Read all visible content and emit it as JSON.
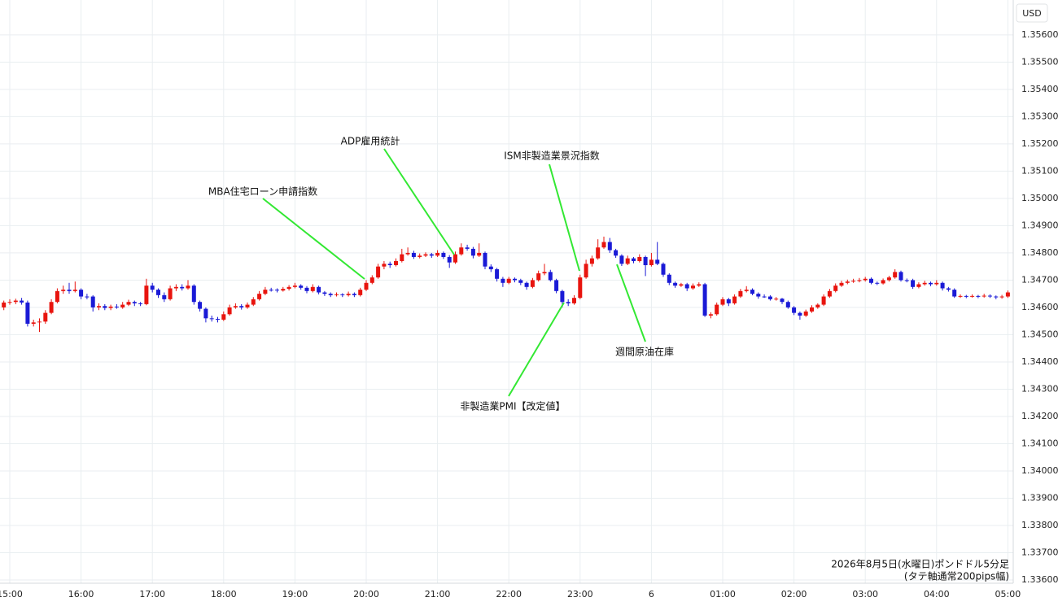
{
  "chart_data": {
    "type": "candlestick",
    "y_axis_label": "USD",
    "caption": [
      "2026年8月5日(水曜日)ポンドドル5分足",
      "(タテ軸通常200pips幅)"
    ],
    "annotations": [
      {
        "text": "MBA住宅ローン申請指数"
      },
      {
        "text": "ADP雇用統計"
      },
      {
        "text": "ISM非製造業景況指数"
      },
      {
        "text": "非製造業PMI【改定値】"
      },
      {
        "text": "週間原油在庫"
      }
    ],
    "up_color": "#e8140e",
    "down_color": "#1a1ad6",
    "annotation_color": "#33e833",
    "grid": true,
    "ylim": [
      1.33588,
      1.35728
    ],
    "yticks": [
      {
        "value": 1.356,
        "label": "1.35600"
      },
      {
        "value": 1.355,
        "label": "1.35500"
      },
      {
        "value": 1.354,
        "label": "1.35400"
      },
      {
        "value": 1.353,
        "label": "1.35300"
      },
      {
        "value": 1.352,
        "label": "1.35200"
      },
      {
        "value": 1.351,
        "label": "1.35100"
      },
      {
        "value": 1.35,
        "label": "1.35000"
      },
      {
        "value": 1.349,
        "label": "1.34900"
      },
      {
        "value": 1.348,
        "label": "1.34800"
      },
      {
        "value": 1.347,
        "label": "1.34700"
      },
      {
        "value": 1.346,
        "label": "1.34600"
      },
      {
        "value": 1.345,
        "label": "1.34500"
      },
      {
        "value": 1.344,
        "label": "1.34400"
      },
      {
        "value": 1.343,
        "label": "1.34300"
      },
      {
        "value": 1.342,
        "label": "1.34200"
      },
      {
        "value": 1.341,
        "label": "1.34100"
      },
      {
        "value": 1.34,
        "label": "1.34000"
      },
      {
        "value": 1.339,
        "label": "1.33900"
      },
      {
        "value": 1.338,
        "label": "1.33800"
      },
      {
        "value": 1.337,
        "label": "1.33700"
      },
      {
        "value": 1.336,
        "label": "1.33600"
      }
    ],
    "categories": [
      null,
      "15:00",
      null,
      null,
      null,
      null,
      null,
      null,
      null,
      null,
      null,
      null,
      null,
      "16:00",
      null,
      null,
      null,
      null,
      null,
      null,
      null,
      null,
      null,
      null,
      null,
      "17:00",
      null,
      null,
      null,
      null,
      null,
      null,
      null,
      null,
      null,
      null,
      null,
      "18:00",
      null,
      null,
      null,
      null,
      null,
      null,
      null,
      null,
      null,
      null,
      null,
      "19:00",
      null,
      null,
      null,
      null,
      null,
      null,
      null,
      null,
      null,
      null,
      null,
      "20:00",
      null,
      null,
      null,
      null,
      null,
      null,
      null,
      null,
      null,
      null,
      null,
      "21:00",
      null,
      null,
      null,
      null,
      null,
      null,
      null,
      null,
      null,
      null,
      null,
      "22:00",
      null,
      null,
      null,
      null,
      null,
      null,
      null,
      null,
      null,
      null,
      null,
      "23:00",
      null,
      null,
      null,
      null,
      null,
      null,
      null,
      null,
      null,
      null,
      null,
      "6",
      null,
      null,
      null,
      null,
      null,
      null,
      null,
      null,
      null,
      null,
      null,
      "01:00",
      null,
      null,
      null,
      null,
      null,
      null,
      null,
      null,
      null,
      null,
      null,
      "02:00",
      null,
      null,
      null,
      null,
      null,
      null,
      null,
      null,
      null,
      null,
      null,
      "03:00",
      null,
      null,
      null,
      null,
      null,
      null,
      null,
      null,
      null,
      null,
      null,
      "04:00",
      null,
      null,
      null,
      null,
      null,
      null,
      null,
      null,
      null,
      null,
      null,
      "05:00"
    ],
    "candles": [
      [
        1.346,
        1.34625,
        1.3459,
        1.34618
      ],
      [
        1.34618,
        1.3463,
        1.3461,
        1.3462
      ],
      [
        1.3462,
        1.34632,
        1.34612,
        1.34625
      ],
      [
        1.34625,
        1.34635,
        1.3461,
        1.34618
      ],
      [
        1.34618,
        1.34625,
        1.3453,
        1.3454
      ],
      [
        1.3454,
        1.34555,
        1.3453,
        1.34545
      ],
      [
        1.34545,
        1.3456,
        1.3451,
        1.34548
      ],
      [
        1.34548,
        1.3459,
        1.3454,
        1.3458
      ],
      [
        1.3458,
        1.3463,
        1.34575,
        1.3462
      ],
      [
        1.3462,
        1.3467,
        1.34615,
        1.3466
      ],
      [
        1.3466,
        1.3468,
        1.3465,
        1.34665
      ],
      [
        1.34665,
        1.3469,
        1.3465,
        1.3466
      ],
      [
        1.3466,
        1.34695,
        1.34655,
        1.34665
      ],
      [
        1.34665,
        1.3467,
        1.3463,
        1.3464
      ],
      [
        1.3464,
        1.3465,
        1.3463,
        1.3464
      ],
      [
        1.3464,
        1.34645,
        1.34585,
        1.346
      ],
      [
        1.346,
        1.34615,
        1.3459,
        1.34605
      ],
      [
        1.34605,
        1.34612,
        1.3459,
        1.34598
      ],
      [
        1.34598,
        1.3461,
        1.3459,
        1.34603
      ],
      [
        1.34603,
        1.34612,
        1.34595,
        1.346
      ],
      [
        1.346,
        1.3462,
        1.34595,
        1.3461
      ],
      [
        1.3461,
        1.34628,
        1.34605,
        1.3462
      ],
      [
        1.3462,
        1.34625,
        1.34605,
        1.34615
      ],
      [
        1.34615,
        1.3462,
        1.34605,
        1.34612
      ],
      [
        1.34612,
        1.34705,
        1.34608,
        1.3468
      ],
      [
        1.3468,
        1.3469,
        1.34655,
        1.34665
      ],
      [
        1.34665,
        1.3467,
        1.34635,
        1.34645
      ],
      [
        1.34645,
        1.34655,
        1.3462,
        1.3463
      ],
      [
        1.3463,
        1.3468,
        1.34625,
        1.3467
      ],
      [
        1.3467,
        1.34685,
        1.3466,
        1.34675
      ],
      [
        1.34675,
        1.34685,
        1.34662,
        1.3467
      ],
      [
        1.3467,
        1.347,
        1.34665,
        1.3468
      ],
      [
        1.3468,
        1.34685,
        1.3461,
        1.3462
      ],
      [
        1.3462,
        1.34625,
        1.34585,
        1.34595
      ],
      [
        1.34595,
        1.346,
        1.34545,
        1.3456
      ],
      [
        1.3456,
        1.3457,
        1.34548,
        1.34558
      ],
      [
        1.34558,
        1.34565,
        1.34545,
        1.34555
      ],
      [
        1.34555,
        1.34585,
        1.3455,
        1.34575
      ],
      [
        1.34575,
        1.3461,
        1.3457,
        1.346
      ],
      [
        1.346,
        1.34615,
        1.34595,
        1.34605
      ],
      [
        1.34605,
        1.34612,
        1.34592,
        1.346
      ],
      [
        1.346,
        1.34618,
        1.34595,
        1.3461
      ],
      [
        1.3461,
        1.34638,
        1.34605,
        1.3463
      ],
      [
        1.3463,
        1.3466,
        1.34625,
        1.3465
      ],
      [
        1.3465,
        1.34675,
        1.34645,
        1.34665
      ],
      [
        1.34665,
        1.34672,
        1.34658,
        1.34665
      ],
      [
        1.34665,
        1.3467,
        1.34655,
        1.34662
      ],
      [
        1.34662,
        1.34675,
        1.34658,
        1.34668
      ],
      [
        1.34668,
        1.34682,
        1.34662,
        1.34675
      ],
      [
        1.34675,
        1.3469,
        1.3467,
        1.3468
      ],
      [
        1.3468,
        1.34685,
        1.34665,
        1.34672
      ],
      [
        1.34672,
        1.34678,
        1.34652,
        1.3466
      ],
      [
        1.3466,
        1.34685,
        1.34655,
        1.34675
      ],
      [
        1.34675,
        1.3468,
        1.34648,
        1.34655
      ],
      [
        1.34655,
        1.3466,
        1.34642,
        1.3465
      ],
      [
        1.3465,
        1.34655,
        1.34638,
        1.34645
      ],
      [
        1.34645,
        1.34655,
        1.3464,
        1.34648
      ],
      [
        1.34648,
        1.34652,
        1.34638,
        1.34645
      ],
      [
        1.34645,
        1.34658,
        1.3464,
        1.3465
      ],
      [
        1.3465,
        1.34655,
        1.34638,
        1.34645
      ],
      [
        1.34645,
        1.34672,
        1.3464,
        1.34665
      ],
      [
        1.34665,
        1.347,
        1.3466,
        1.3469
      ],
      [
        1.3469,
        1.34718,
        1.34685,
        1.3471
      ],
      [
        1.3471,
        1.3476,
        1.34705,
        1.3475
      ],
      [
        1.3475,
        1.3477,
        1.3474,
        1.3476
      ],
      [
        1.3476,
        1.34768,
        1.34745,
        1.34755
      ],
      [
        1.34755,
        1.3478,
        1.3475,
        1.3477
      ],
      [
        1.3477,
        1.34815,
        1.34765,
        1.34795
      ],
      [
        1.34795,
        1.3482,
        1.3479,
        1.348
      ],
      [
        1.348,
        1.34808,
        1.34778,
        1.34785
      ],
      [
        1.34785,
        1.34798,
        1.3478,
        1.3479
      ],
      [
        1.3479,
        1.34802,
        1.34785,
        1.34795
      ],
      [
        1.34795,
        1.348,
        1.34782,
        1.3479
      ],
      [
        1.3479,
        1.3481,
        1.34785,
        1.348
      ],
      [
        1.348,
        1.34805,
        1.34778,
        1.34785
      ],
      [
        1.34785,
        1.34792,
        1.34745,
        1.34765
      ],
      [
        1.34765,
        1.34805,
        1.3476,
        1.34795
      ],
      [
        1.34795,
        1.34835,
        1.3479,
        1.3482
      ],
      [
        1.3482,
        1.3483,
        1.34808,
        1.34815
      ],
      [
        1.34815,
        1.34822,
        1.3478,
        1.3479
      ],
      [
        1.3479,
        1.34835,
        1.34785,
        1.348
      ],
      [
        1.348,
        1.34805,
        1.3474,
        1.3475
      ],
      [
        1.3475,
        1.34758,
        1.3473,
        1.3474
      ],
      [
        1.3474,
        1.34745,
        1.34695,
        1.34705
      ],
      [
        1.34705,
        1.34712,
        1.34675,
        1.3469
      ],
      [
        1.3469,
        1.34712,
        1.34685,
        1.34705
      ],
      [
        1.34705,
        1.3471,
        1.34692,
        1.347
      ],
      [
        1.347,
        1.34705,
        1.34682,
        1.3469
      ],
      [
        1.3469,
        1.34695,
        1.34665,
        1.34675
      ],
      [
        1.34675,
        1.34708,
        1.3467,
        1.347
      ],
      [
        1.347,
        1.34735,
        1.34695,
        1.34725
      ],
      [
        1.34725,
        1.3476,
        1.34718,
        1.3473
      ],
      [
        1.3473,
        1.34738,
        1.34695,
        1.347
      ],
      [
        1.347,
        1.34705,
        1.34652,
        1.3466
      ],
      [
        1.3466,
        1.34665,
        1.346,
        1.3462
      ],
      [
        1.3462,
        1.3463,
        1.34605,
        1.34615
      ],
      [
        1.34615,
        1.34645,
        1.3461,
        1.34635
      ],
      [
        1.34635,
        1.3472,
        1.3463,
        1.3471
      ],
      [
        1.3471,
        1.34775,
        1.34705,
        1.3476
      ],
      [
        1.3476,
        1.3479,
        1.3475,
        1.3478
      ],
      [
        1.3478,
        1.3485,
        1.34775,
        1.3482
      ],
      [
        1.3482,
        1.3486,
        1.34815,
        1.3484
      ],
      [
        1.3484,
        1.34855,
        1.348,
        1.3481
      ],
      [
        1.3481,
        1.34815,
        1.34782,
        1.3479
      ],
      [
        1.3479,
        1.34795,
        1.34752,
        1.3476
      ],
      [
        1.3476,
        1.3479,
        1.34755,
        1.3478
      ],
      [
        1.3478,
        1.34785,
        1.34762,
        1.3477
      ],
      [
        1.3477,
        1.34795,
        1.34765,
        1.34785
      ],
      [
        1.34785,
        1.3479,
        1.34715,
        1.34755
      ],
      [
        1.34755,
        1.348,
        1.3475,
        1.34775
      ],
      [
        1.34775,
        1.3484,
        1.34755,
        1.3476
      ],
      [
        1.3476,
        1.34765,
        1.34712,
        1.3472
      ],
      [
        1.3472,
        1.34725,
        1.34682,
        1.3469
      ],
      [
        1.3469,
        1.34695,
        1.34672,
        1.3468
      ],
      [
        1.3468,
        1.3469,
        1.34675,
        1.34685
      ],
      [
        1.34685,
        1.3469,
        1.3466,
        1.3467
      ],
      [
        1.3467,
        1.34688,
        1.34665,
        1.3468
      ],
      [
        1.3468,
        1.34692,
        1.34675,
        1.34685
      ],
      [
        1.34685,
        1.3469,
        1.34565,
        1.3457
      ],
      [
        1.3457,
        1.34582,
        1.3456,
        1.34575
      ],
      [
        1.34575,
        1.34618,
        1.3457,
        1.3461
      ],
      [
        1.3461,
        1.34638,
        1.34605,
        1.3463
      ],
      [
        1.3463,
        1.34635,
        1.34605,
        1.34615
      ],
      [
        1.34615,
        1.34648,
        1.3461,
        1.3464
      ],
      [
        1.3464,
        1.34668,
        1.34635,
        1.3466
      ],
      [
        1.3466,
        1.34678,
        1.34655,
        1.34665
      ],
      [
        1.34665,
        1.3467,
        1.34645,
        1.3465
      ],
      [
        1.3465,
        1.34655,
        1.34632,
        1.3464
      ],
      [
        1.3464,
        1.34648,
        1.34635,
        1.3464
      ],
      [
        1.3464,
        1.34645,
        1.34625,
        1.3463
      ],
      [
        1.3463,
        1.34638,
        1.34625,
        1.34632
      ],
      [
        1.34632,
        1.34635,
        1.34612,
        1.3462
      ],
      [
        1.3462,
        1.34625,
        1.34595,
        1.346
      ],
      [
        1.346,
        1.34605,
        1.34572,
        1.3458
      ],
      [
        1.3458,
        1.34585,
        1.34555,
        1.3457
      ],
      [
        1.3457,
        1.34592,
        1.34565,
        1.34585
      ],
      [
        1.34585,
        1.34608,
        1.3458,
        1.346
      ],
      [
        1.346,
        1.34615,
        1.34595,
        1.3461
      ],
      [
        1.3461,
        1.34648,
        1.34605,
        1.3464
      ],
      [
        1.3464,
        1.34668,
        1.34635,
        1.3466
      ],
      [
        1.3466,
        1.34688,
        1.34655,
        1.3468
      ],
      [
        1.3468,
        1.34698,
        1.34675,
        1.3469
      ],
      [
        1.3469,
        1.34702,
        1.34685,
        1.34695
      ],
      [
        1.34695,
        1.34705,
        1.3469,
        1.34698
      ],
      [
        1.34698,
        1.34708,
        1.34692,
        1.347
      ],
      [
        1.347,
        1.34712,
        1.34695,
        1.34705
      ],
      [
        1.34705,
        1.3471,
        1.34685,
        1.3469
      ],
      [
        1.3469,
        1.34695,
        1.34682,
        1.34688
      ],
      [
        1.34688,
        1.34706,
        1.34684,
        1.347
      ],
      [
        1.347,
        1.34716,
        1.34695,
        1.3471
      ],
      [
        1.3471,
        1.3474,
        1.34705,
        1.3473
      ],
      [
        1.3473,
        1.34735,
        1.34695,
        1.347
      ],
      [
        1.347,
        1.34706,
        1.34692,
        1.347
      ],
      [
        1.347,
        1.34705,
        1.34668,
        1.34675
      ],
      [
        1.34675,
        1.34692,
        1.3467,
        1.34685
      ],
      [
        1.34685,
        1.34698,
        1.3468,
        1.3469
      ],
      [
        1.3469,
        1.34695,
        1.34678,
        1.34685
      ],
      [
        1.34685,
        1.347,
        1.3468,
        1.3469
      ],
      [
        1.3469,
        1.34695,
        1.34662,
        1.3467
      ],
      [
        1.3467,
        1.34675,
        1.34658,
        1.34665
      ],
      [
        1.34665,
        1.3467,
        1.34635,
        1.3464
      ],
      [
        1.3464,
        1.34648,
        1.34635,
        1.34642
      ],
      [
        1.34642,
        1.34646,
        1.34634,
        1.3464
      ],
      [
        1.3464,
        1.34648,
        1.34636,
        1.34642
      ],
      [
        1.34642,
        1.34646,
        1.34634,
        1.3464
      ],
      [
        1.3464,
        1.3465,
        1.34636,
        1.34643
      ],
      [
        1.34643,
        1.34648,
        1.34635,
        1.3464
      ],
      [
        1.3464,
        1.34644,
        1.3463,
        1.34637
      ],
      [
        1.34637,
        1.34646,
        1.34632,
        1.3464
      ],
      [
        1.3464,
        1.34662,
        1.34635,
        1.34655
      ]
    ]
  }
}
